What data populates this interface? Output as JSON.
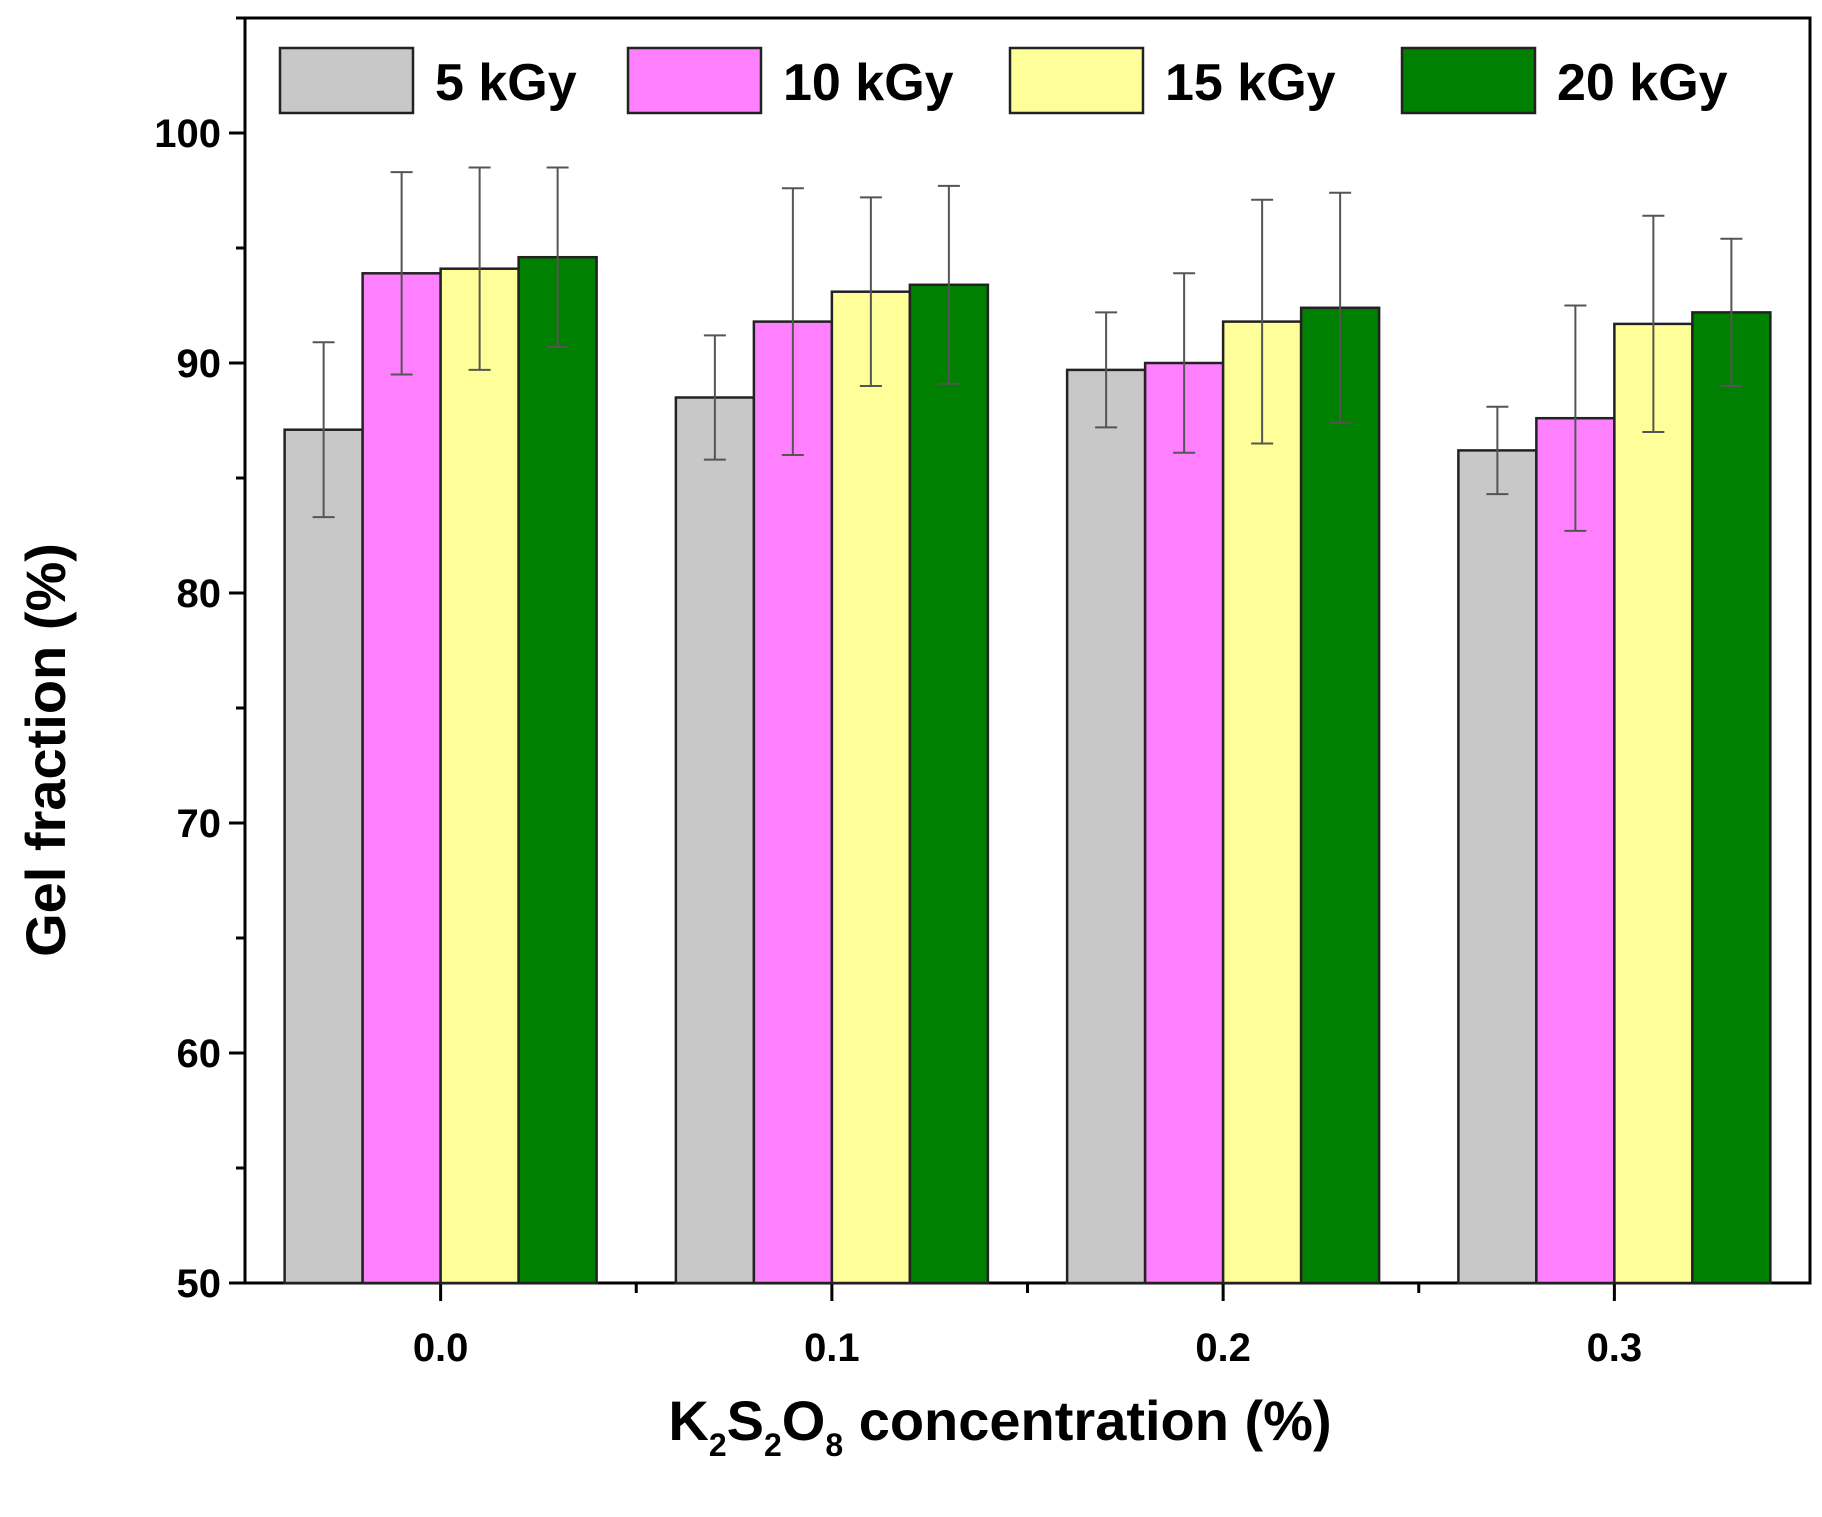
{
  "chart_data": {
    "type": "bar",
    "title": "",
    "xlabel": {
      "main": "K",
      "sub1": "2",
      "mid": "S",
      "sub2": "2",
      "mid2": "O",
      "sub3": "8",
      "tail": " concentration (%)"
    },
    "ylabel": "Gel fraction (%)",
    "ylim": [
      50,
      105
    ],
    "yticks": [
      50,
      60,
      70,
      80,
      90,
      100
    ],
    "categories": [
      "0.0",
      "0.1",
      "0.2",
      "0.3"
    ],
    "series": [
      {
        "name": "5 kGy",
        "color": "#c8c8c8",
        "values": [
          87.1,
          88.5,
          89.7,
          86.2
        ],
        "errors": [
          3.8,
          2.7,
          2.5,
          1.9
        ]
      },
      {
        "name": "10 kGy",
        "color": "#ff80ff",
        "values": [
          93.9,
          91.8,
          90.0,
          87.6
        ],
        "errors": [
          4.4,
          5.8,
          3.9,
          4.9
        ]
      },
      {
        "name": "15 kGy",
        "color": "#ffff99",
        "values": [
          94.1,
          93.1,
          91.8,
          91.7
        ],
        "errors": [
          4.4,
          4.1,
          5.3,
          4.7
        ]
      },
      {
        "name": "20 kGy",
        "color": "#008000",
        "values": [
          94.6,
          93.4,
          92.4,
          92.2
        ],
        "errors": [
          3.9,
          4.3,
          5.0,
          3.2
        ]
      }
    ],
    "legend_position": "top"
  }
}
